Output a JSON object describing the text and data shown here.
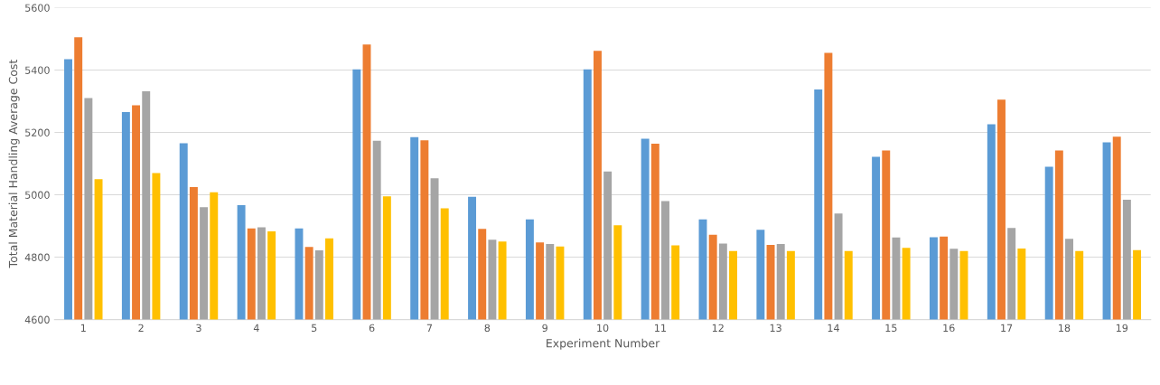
{
  "chart_data": {
    "type": "bar",
    "xlabel": "Experiment Number",
    "ylabel": "Total Material Handling Average Cost",
    "categories": [
      "1",
      "2",
      "3",
      "4",
      "5",
      "6",
      "7",
      "8",
      "9",
      "10",
      "11",
      "12",
      "13",
      "14",
      "15",
      "16",
      "17",
      "18",
      "19"
    ],
    "series": [
      {
        "color": "#5b9bd5",
        "values": [
          5435,
          5265,
          5165,
          4967,
          4892,
          5402,
          5185,
          4994,
          4921,
          5402,
          5180,
          4921,
          4888,
          5338,
          5122,
          4864,
          5226,
          5090,
          5168
        ]
      },
      {
        "color": "#ed7d31",
        "values": [
          5505,
          5287,
          5025,
          4892,
          4833,
          5482,
          5175,
          4891,
          4847,
          5462,
          5164,
          4872,
          4839,
          5455,
          5142,
          4866,
          5305,
          5142,
          5186
        ]
      },
      {
        "color": "#a5a5a5",
        "values": [
          5310,
          5332,
          4960,
          4896,
          4822,
          5173,
          5053,
          4856,
          4842,
          5075,
          4980,
          4844,
          4842,
          4940,
          4863,
          4827,
          4894,
          4859,
          4984
        ]
      },
      {
        "color": "#ffc000",
        "values": [
          5050,
          5070,
          5008,
          4883,
          4860,
          4995,
          4957,
          4850,
          4834,
          4902,
          4838,
          4820,
          4820,
          4820,
          4830,
          4820,
          4828,
          4820,
          4823
        ]
      }
    ],
    "ylim": [
      4600,
      5600
    ],
    "yticks": [
      4600,
      4800,
      5000,
      5200,
      5400,
      5600
    ],
    "grid": "y"
  }
}
